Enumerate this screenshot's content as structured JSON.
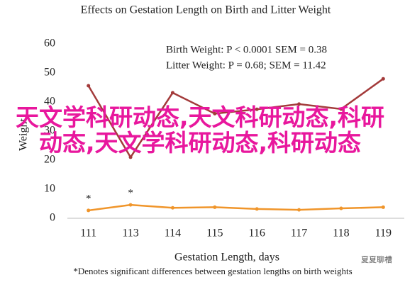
{
  "chart_data": {
    "type": "line",
    "title": "Effects on Gestation Length on Birth and Litter Weight",
    "x_label": "Gestation Length, days",
    "y_label": "Weight",
    "categories": [
      "111",
      "113",
      "114",
      "115",
      "116",
      "117",
      "118",
      "119"
    ],
    "series": [
      {
        "color": "#a33a3a",
        "values": [
          45.6,
          21,
          43.2,
          36,
          37.5,
          39.3,
          37.6,
          48
        ]
      },
      {
        "color": "#f0952a",
        "values": [
          2.7,
          4.6,
          3.6,
          3.8,
          3.2,
          2.9,
          3.4,
          3.8
        ]
      }
    ],
    "annotations": [
      {
        "text": "*",
        "category": 0
      },
      {
        "text": "*",
        "category": 1
      }
    ],
    "notes": [
      "Birth Weight: P < 0.0001 SEM = 0.38",
      "Litter Weight: P = 0.68; SEM = 11.42"
    ],
    "footnote": "*Denotes significant differences between gestation lengths on birth weights",
    "ylim": [
      0,
      60
    ],
    "yticks": [
      0,
      10,
      20,
      30,
      40,
      50,
      60
    ],
    "grid": false
  },
  "overlay_text": "天文学科研动态,天文科研动态,科研动态,天文学科研动态,科研动态",
  "watermark": "夏夏聊槽"
}
